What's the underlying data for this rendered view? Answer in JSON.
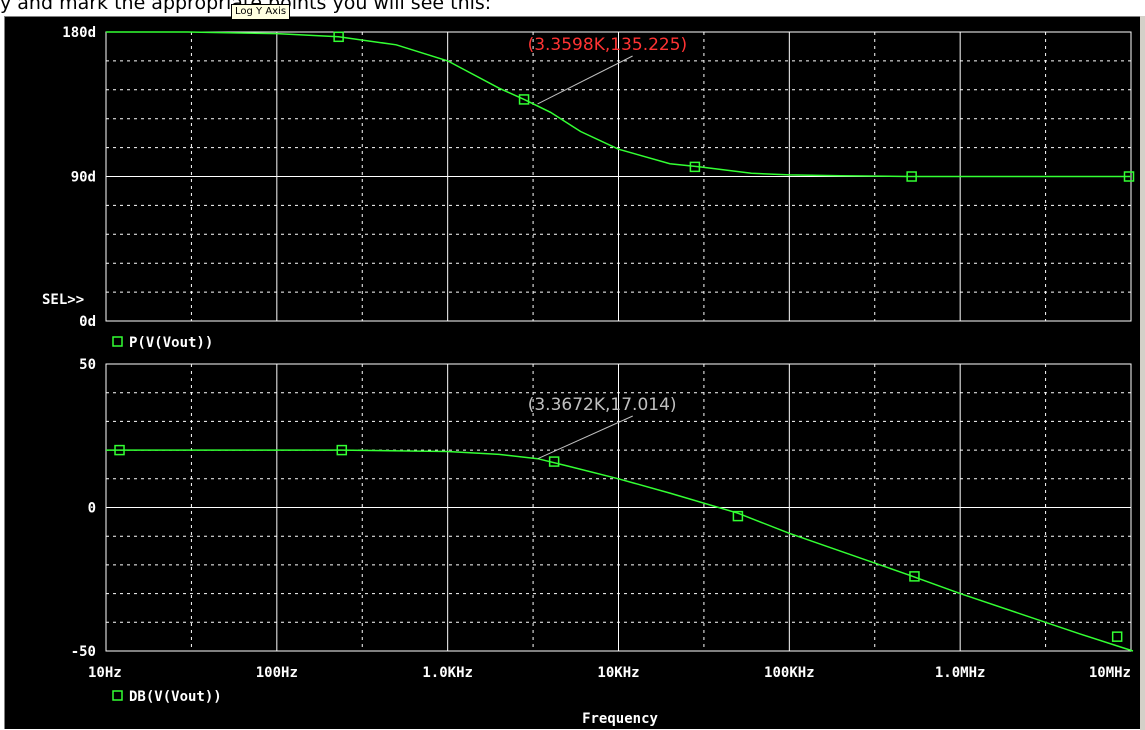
{
  "caption": "y and mark the appropriate points you will see this:",
  "tooltip": "Log Y Axis",
  "colors": {
    "background": "#000000",
    "grid": "#ffffff",
    "trace": "#33ff33",
    "label": "#ffffff",
    "cursor_top": "#ff3333",
    "cursor_bottom": "#c0c0c0",
    "marker": "#33ff33"
  },
  "chart_data": [
    {
      "type": "line",
      "name": "phase-plot",
      "x_scale": "log",
      "xlim": [
        10,
        10000000
      ],
      "ylim": [
        0,
        180
      ],
      "ytick_labels": [
        "180d",
        "90d",
        "0d"
      ],
      "yticks": [
        180,
        90,
        0
      ],
      "sel_label": "SEL>>",
      "legend": "P(V(Vout))",
      "grid": true,
      "series": [
        {
          "name": "P(V(Vout))",
          "x": [
            10,
            30,
            100,
            230,
            500,
            1000,
            2000,
            2800,
            4000,
            6000,
            10000,
            20000,
            30000,
            60000,
            100000,
            200000,
            500000,
            1000000,
            10000000
          ],
          "y": [
            180,
            180,
            179,
            177,
            172,
            162,
            145,
            138,
            130,
            118,
            107,
            98,
            96,
            92,
            91,
            90.5,
            90,
            90,
            90
          ]
        }
      ],
      "markers": {
        "x": [
          230,
          2800,
          28000,
          520000,
          10000000
        ],
        "y": [
          177,
          138,
          96,
          90,
          90
        ]
      },
      "annotation": {
        "text": "(3.3598K,135.225)",
        "x": 3359.8,
        "y": 135.225
      }
    },
    {
      "type": "line",
      "name": "magnitude-plot",
      "x_scale": "log",
      "xlim": [
        10,
        10000000
      ],
      "ylim": [
        -50,
        50
      ],
      "ytick_labels": [
        "50",
        "0",
        "-50"
      ],
      "yticks": [
        50,
        0,
        -50
      ],
      "legend": "DB(V(Vout))",
      "xtick_labels": [
        "10Hz",
        "100Hz",
        "1.0KHz",
        "10KHz",
        "100KHz",
        "1.0MHz",
        "10MHz"
      ],
      "xticks": [
        10,
        100,
        1000,
        10000,
        100000,
        1000000,
        10000000
      ],
      "xlabel": "Frequency",
      "grid": true,
      "series": [
        {
          "name": "DB(V(Vout))",
          "x": [
            10,
            100,
            240,
            1000,
            2000,
            3367,
            5000,
            10000,
            20000,
            50000,
            100000,
            500000,
            1000000,
            5000000,
            12000000
          ],
          "y": [
            20,
            20,
            20,
            19.5,
            18.5,
            17,
            14.5,
            10,
            5,
            -2,
            -9,
            -23.5,
            -30,
            -44,
            -50
          ]
        }
      ],
      "markers": {
        "x": [
          12,
          240,
          4200,
          50000,
          540000,
          8300000
        ],
        "y": [
          20,
          20,
          16,
          -3,
          -24,
          -45
        ]
      },
      "annotation": {
        "text": "(3.3672K,17.014)",
        "x": 3367.2,
        "y": 17.014
      }
    }
  ]
}
